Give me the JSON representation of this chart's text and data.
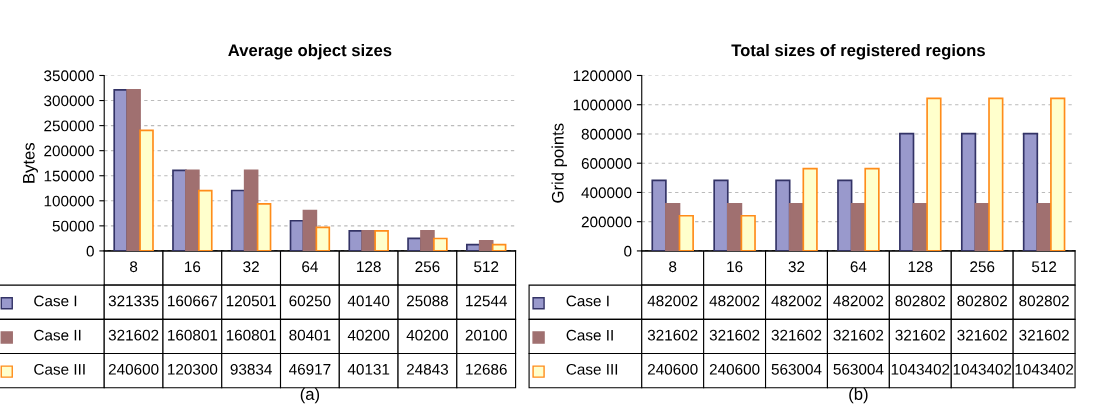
{
  "chart_data": [
    {
      "type": "bar",
      "title": "Average object sizes",
      "ylabel": "Bytes",
      "categories": [
        "8",
        "16",
        "32",
        "64",
        "128",
        "256",
        "512"
      ],
      "series": [
        {
          "name": "Case I",
          "color": "#9999cc",
          "values": [
            321335,
            160667,
            120501,
            60250,
            40140,
            25088,
            12544
          ]
        },
        {
          "name": "Case II",
          "color": "#a07070",
          "values": [
            321602,
            160801,
            160801,
            80401,
            40200,
            40200,
            20100
          ]
        },
        {
          "name": "Case III",
          "color": "#ffffcc",
          "values": [
            240600,
            120300,
            93834,
            46917,
            40131,
            24843,
            12686
          ]
        }
      ],
      "ylim": [
        0,
        350000
      ],
      "yticks": [
        0,
        50000,
        100000,
        150000,
        200000,
        250000,
        300000,
        350000
      ],
      "grid": "y",
      "data_labels": true,
      "legend": "bottom left",
      "annotations": [
        "(a)"
      ]
    },
    {
      "type": "bar",
      "title": "Total sizes of registered regions",
      "ylabel": "Grid points",
      "categories": [
        "8",
        "16",
        "32",
        "64",
        "128",
        "256",
        "512"
      ],
      "series": [
        {
          "name": "Case I",
          "color": "#9999cc",
          "values": [
            482002,
            482002,
            482002,
            482002,
            802802,
            802802,
            802802
          ]
        },
        {
          "name": "Case II",
          "color": "#a07070",
          "values": [
            321602,
            321602,
            321602,
            321602,
            321602,
            321602,
            321602
          ]
        },
        {
          "name": "Case III",
          "color": "#ffffcc",
          "values": [
            240600,
            240600,
            563004,
            563004,
            1043402,
            1043402,
            1043402
          ]
        }
      ],
      "ylim": [
        0,
        1200000
      ],
      "yticks": [
        0,
        200000,
        400000,
        600000,
        800000,
        1000000,
        1200000
      ],
      "grid": "y",
      "data_labels": true,
      "legend": "bottom left",
      "annotations": [
        "(b)"
      ]
    }
  ]
}
